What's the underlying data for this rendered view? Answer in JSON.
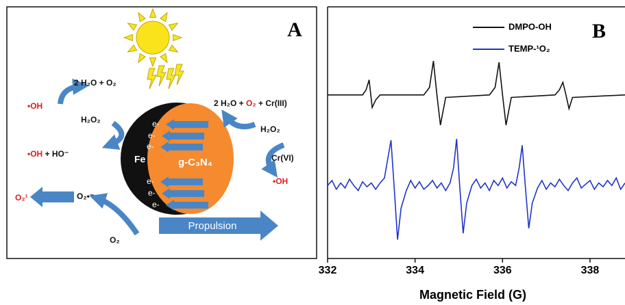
{
  "diagram": {
    "panel_label": "A",
    "water_left": "2 H₂O + O₂",
    "oh_left": "•OH",
    "h2o2_left": "H₂O₂",
    "oh_hydroxide": [
      "•OH",
      " + HO⁻"
    ],
    "fe": "Fe",
    "gc3n4": "g-C₃N₄",
    "electrons": [
      "e-",
      "e-",
      "e-",
      "e-",
      "e-",
      "e-"
    ],
    "cr_products": [
      "2 H₂O + ",
      "O₂",
      " + Cr(III)"
    ],
    "h2o2_right": "H₂O₂",
    "cr6": "Cr(VI)",
    "oh_right": "•OH",
    "singlet_o2": "O₂¹",
    "superoxide": "O₂•⁻",
    "o2": "O₂",
    "propulsion": "Propulsion"
  },
  "chart_data": {
    "type": "line",
    "panel_label": "B",
    "xlabel": "Magnetic Field (G)",
    "xlim": [
      332,
      338.8
    ],
    "xticks": [
      332,
      334,
      336,
      338
    ],
    "ylim": [
      0,
      100
    ],
    "series": [
      {
        "name": "DMPO-OH",
        "color": "#111111",
        "x": [
          332,
          332.8,
          332.88,
          332.95,
          333.02,
          333.1,
          333.2,
          334.2,
          334.33,
          334.42,
          334.5,
          334.58,
          334.7,
          335.7,
          335.83,
          335.92,
          336.0,
          336.08,
          336.2,
          337.2,
          337.3,
          337.38,
          337.45,
          337.52,
          337.6,
          338.8
        ],
        "values": [
          65,
          65,
          67,
          71,
          60,
          63,
          65,
          65,
          68,
          78.5,
          65,
          53,
          64,
          65,
          68,
          78,
          65,
          53,
          64,
          65,
          67,
          70,
          65,
          59.5,
          64,
          65
        ]
      },
      {
        "name": "TEMP-¹O₂",
        "color": "#1f33c8",
        "x": [
          332.0,
          332.1,
          332.2,
          332.3,
          332.4,
          332.5,
          332.6,
          332.7,
          332.8,
          332.9,
          333.0,
          333.1,
          333.2,
          333.3,
          333.38,
          333.45,
          333.52,
          333.6,
          333.68,
          333.8,
          333.9,
          334.0,
          334.1,
          334.2,
          334.3,
          334.4,
          334.5,
          334.6,
          334.7,
          334.8,
          334.88,
          334.95,
          335.02,
          335.1,
          335.18,
          335.3,
          335.4,
          335.5,
          335.6,
          335.7,
          335.8,
          335.9,
          336.0,
          336.1,
          336.2,
          336.3,
          336.38,
          336.45,
          336.52,
          336.6,
          336.68,
          336.8,
          336.9,
          337.0,
          337.1,
          337.2,
          337.3,
          337.4,
          337.5,
          337.6,
          337.7,
          337.8,
          337.9,
          338.0,
          338.1,
          338.2,
          338.3,
          338.4,
          338.5,
          338.6,
          338.7,
          338.8
        ],
        "values": [
          29,
          31,
          27.5,
          30,
          28,
          31.5,
          29,
          27,
          30.5,
          28.5,
          30,
          27.5,
          30,
          32,
          40,
          47,
          29,
          7.5,
          20,
          27,
          31,
          28,
          30.5,
          27.5,
          29,
          31,
          28,
          30,
          27,
          30,
          36,
          47.5,
          29,
          10,
          22,
          29,
          31.5,
          28,
          30,
          27,
          31,
          29,
          32,
          28,
          30.5,
          29,
          36,
          45,
          29,
          12,
          22,
          28,
          31,
          27.5,
          30,
          28.5,
          31.5,
          29,
          27,
          30,
          32,
          28,
          29.5,
          31,
          27.5,
          30,
          28.5,
          31,
          29,
          32,
          27.5,
          30
        ]
      }
    ]
  }
}
